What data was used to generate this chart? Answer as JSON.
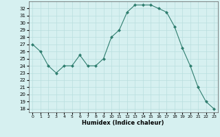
{
  "x": [
    0,
    1,
    2,
    3,
    4,
    5,
    6,
    7,
    8,
    9,
    10,
    11,
    12,
    13,
    14,
    15,
    16,
    17,
    18,
    19,
    20,
    21,
    22,
    23
  ],
  "y": [
    27,
    26,
    24,
    23,
    24,
    24,
    25.5,
    24,
    24,
    25,
    28,
    29,
    31.5,
    32.5,
    32.5,
    32.5,
    32,
    31.5,
    29.5,
    26.5,
    24,
    21,
    19,
    18
  ],
  "xlabel": "Humidex (Indice chaleur)",
  "line_color": "#2e7d6e",
  "marker_color": "#2e7d6e",
  "bg_color": "#d6f0f0",
  "grid_color": "#b8dede",
  "ylim": [
    17.5,
    33
  ],
  "xlim": [
    -0.5,
    23.5
  ],
  "yticks": [
    18,
    19,
    20,
    21,
    22,
    23,
    24,
    25,
    26,
    27,
    28,
    29,
    30,
    31,
    32
  ],
  "xticks": [
    0,
    1,
    2,
    3,
    4,
    5,
    6,
    7,
    8,
    9,
    10,
    11,
    12,
    13,
    14,
    15,
    16,
    17,
    18,
    19,
    20,
    21,
    22,
    23
  ]
}
